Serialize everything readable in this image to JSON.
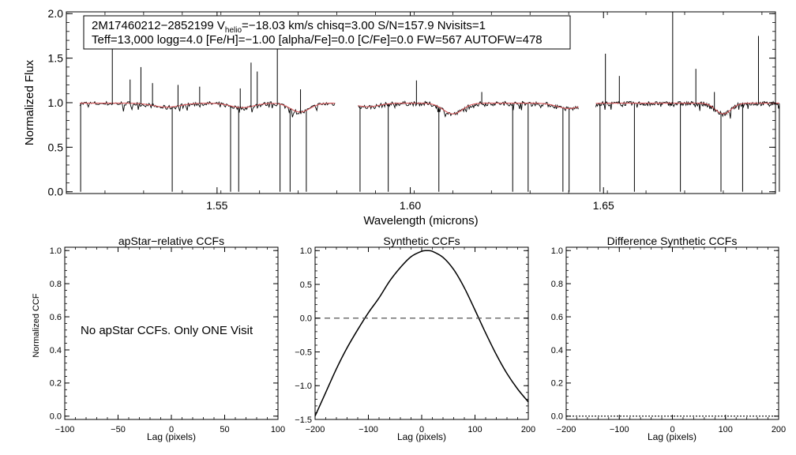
{
  "top_panel": {
    "info_line1_prefix": "2M17460212−2852199  V",
    "info_line1_sub": "helio",
    "info_line1_suffix": "=−18.03 km/s  chisq=3.00  S/N=157.9  Nvisits=1",
    "info_line2": "Teff=13,000 logg=4.0 [Fe/H]=−1.00 [alpha/Fe]=0.0 [C/Fe]=0.0 FW=567 AUTOFW=478"
  },
  "annotations": {
    "no_ccf_message": "No apStar CCFs.  Only ONE Visit"
  },
  "colors": {
    "observed": "#000000",
    "model": "#d9595c",
    "axis": "#000000"
  },
  "chart_data": [
    {
      "type": "line",
      "title": "",
      "xlabel": "Wavelength (microns)",
      "ylabel": "Normalized Flux",
      "xlim": [
        1.511,
        1.6945
      ],
      "ylim": [
        -0.02,
        2.02
      ],
      "xticks": [
        1.55,
        1.6,
        1.65
      ],
      "xtick_labels": [
        "1.55",
        "1.60",
        "1.65"
      ],
      "yticks": [
        0.0,
        0.5,
        1.0,
        1.5,
        2.0
      ],
      "ytick_labels": [
        "0.0",
        "0.5",
        "1.0",
        "1.5",
        "2.0"
      ],
      "chips": [
        [
          1.5145,
          1.5805
        ],
        [
          1.5865,
          1.6435
        ],
        [
          1.648,
          1.6955
        ]
      ],
      "continuum": 0.99,
      "broad_features": [
        {
          "center": 1.537,
          "depth": 0.045,
          "width": 0.0035
        },
        {
          "center": 1.5565,
          "depth": 0.05,
          "width": 0.003
        },
        {
          "center": 1.5715,
          "depth": 0.1,
          "width": 0.0025
        },
        {
          "center": 1.589,
          "depth": 0.04,
          "width": 0.003
        },
        {
          "center": 1.611,
          "depth": 0.12,
          "width": 0.0025
        },
        {
          "center": 1.641,
          "depth": 0.06,
          "width": 0.003
        },
        {
          "center": 1.681,
          "depth": 0.12,
          "width": 0.002
        }
      ],
      "bad_pixel_drops": [
        1.5147,
        1.5384,
        1.5535,
        1.5556,
        1.5663,
        1.5689,
        1.5731,
        1.587,
        1.5943,
        1.6074,
        1.6265,
        1.6305,
        1.6395,
        1.6411,
        1.6491,
        1.658,
        1.6699,
        1.6804,
        1.686,
        1.6955
      ],
      "emission_spikes": [
        {
          "x": 1.5229,
          "y": 1.6
        },
        {
          "x": 1.5275,
          "y": 1.26
        },
        {
          "x": 1.5303,
          "y": 1.4
        },
        {
          "x": 1.5333,
          "y": 1.22
        },
        {
          "x": 1.5399,
          "y": 1.2
        },
        {
          "x": 1.5455,
          "y": 1.18
        },
        {
          "x": 1.556,
          "y": 1.16
        },
        {
          "x": 1.5588,
          "y": 1.45
        },
        {
          "x": 1.5604,
          "y": 1.35
        },
        {
          "x": 1.5656,
          "y": 1.84
        },
        {
          "x": 1.5716,
          "y": 1.15
        },
        {
          "x": 1.6016,
          "y": 1.25
        },
        {
          "x": 1.6185,
          "y": 1.12
        },
        {
          "x": 1.6505,
          "y": 1.55
        },
        {
          "x": 1.6541,
          "y": 1.3
        },
        {
          "x": 1.6679,
          "y": 2.02
        },
        {
          "x": 1.6739,
          "y": 1.38
        },
        {
          "x": 1.6787,
          "y": 1.12
        },
        {
          "x": 1.6901,
          "y": 1.75
        }
      ]
    },
    {
      "type": "line",
      "title": "apStar−relative CCFs",
      "xlabel": "Lag (pixels)",
      "ylabel": "Normalized CCF",
      "xlim": [
        -100,
        100
      ],
      "ylim": [
        -0.02,
        1.02
      ],
      "xticks": [
        -100,
        -50,
        0,
        50,
        100
      ],
      "xtick_labels": [
        "−100",
        "−50",
        "0",
        "50",
        "100"
      ],
      "yticks": [
        0.0,
        0.2,
        0.4,
        0.6,
        0.8,
        1.0
      ],
      "ytick_labels": [
        "0.0",
        "0.2",
        "0.4",
        "0.6",
        "0.8",
        "1.0"
      ],
      "series": []
    },
    {
      "type": "line",
      "title": "Synthetic CCFs",
      "xlabel": "Lag (pixels)",
      "ylabel": "",
      "xlim": [
        -200,
        200
      ],
      "ylim": [
        -1.5,
        1.05
      ],
      "xticks": [
        -200,
        -100,
        0,
        100,
        200
      ],
      "xtick_labels": [
        "−200",
        "−100",
        "0",
        "100",
        "200"
      ],
      "yticks": [
        -1.5,
        -1.0,
        -0.5,
        0.0,
        0.5,
        1.0
      ],
      "ytick_labels": [
        "−1.5",
        "−1.0",
        "−0.5",
        "0.0",
        "0.5",
        "1.0"
      ],
      "series": [
        {
          "name": "synthetic ccf",
          "x": [
            -200,
            -180,
            -160,
            -140,
            -120,
            -100,
            -80,
            -60,
            -40,
            -20,
            0,
            10,
            20,
            40,
            60,
            80,
            100,
            120,
            140,
            160,
            180,
            200
          ],
          "values": [
            -1.45,
            -1.1,
            -0.75,
            -0.44,
            -0.17,
            0.08,
            0.3,
            0.55,
            0.75,
            0.91,
            0.99,
            1.0,
            0.99,
            0.9,
            0.72,
            0.45,
            0.12,
            -0.22,
            -0.54,
            -0.82,
            -1.05,
            -1.24
          ]
        },
        {
          "name": "zero reference",
          "x": [
            -200,
            200
          ],
          "values": [
            0.0,
            0.0
          ]
        }
      ]
    },
    {
      "type": "line",
      "title": "Difference Synthetic CCFs",
      "xlabel": "Lag (pixels)",
      "ylabel": "",
      "xlim": [
        -200,
        200
      ],
      "ylim": [
        -0.02,
        1.02
      ],
      "xticks": [
        -200,
        -100,
        0,
        100,
        200
      ],
      "xtick_labels": [
        "−200",
        "−100",
        "0",
        "100",
        "200"
      ],
      "yticks": [
        0.0,
        0.2,
        0.4,
        0.6,
        0.8,
        1.0
      ],
      "ytick_labels": [
        "0.0",
        "0.2",
        "0.4",
        "0.6",
        "0.8",
        "1.0"
      ],
      "series": [
        {
          "name": "difference ccf",
          "x": [
            -200,
            200
          ],
          "values": [
            0.0,
            0.0
          ]
        }
      ]
    }
  ]
}
